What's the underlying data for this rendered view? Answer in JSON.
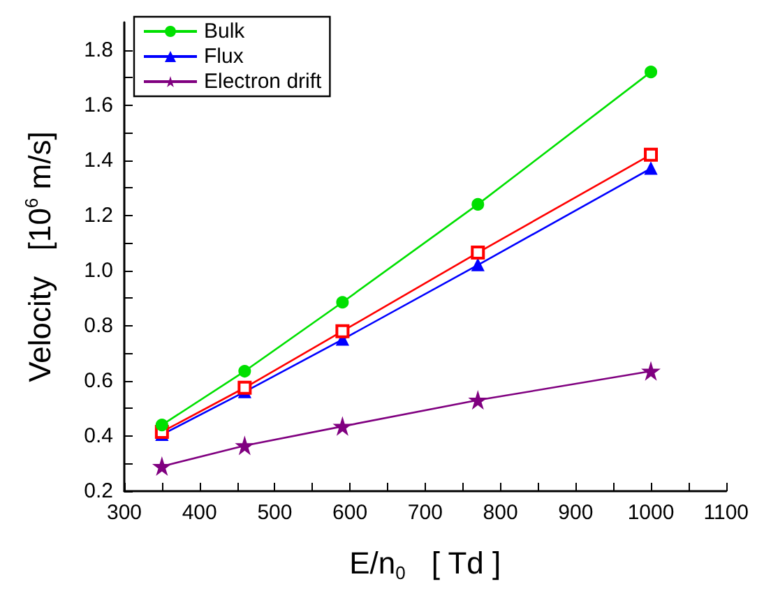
{
  "chart_data": {
    "type": "line",
    "xlabel": "E/n$_{0}$   [ Td ]",
    "ylabel": "Velocity   [10$^{6}$ m/s]",
    "x": [
      350,
      460,
      590,
      770,
      1000
    ],
    "series": [
      {
        "name": "Bulk",
        "color": "#00e000",
        "marker": "circle",
        "values": [
          0.44,
          0.635,
          0.885,
          1.24,
          1.72
        ]
      },
      {
        "color": "#ff0000",
        "marker": "square",
        "values": [
          0.415,
          0.575,
          0.78,
          1.065,
          1.42
        ]
      },
      {
        "name": "Flux",
        "color": "#0000ff",
        "marker": "triangle",
        "values": [
          0.405,
          0.56,
          0.75,
          1.02,
          1.37
        ]
      },
      {
        "name": "Electron drift",
        "color": "#800080",
        "marker": "star",
        "values": [
          0.29,
          0.365,
          0.435,
          0.53,
          0.635
        ]
      }
    ],
    "xlim": [
      300,
      1100
    ],
    "xticks": [
      300,
      400,
      500,
      600,
      700,
      800,
      900,
      1000,
      1100
    ],
    "ylim": [
      0.2,
      1.9
    ],
    "yticks": [
      0.2,
      0.4,
      0.6,
      0.8,
      {
        "value": 1,
        "label": "1.0"
      },
      1.2,
      1.4,
      1.6,
      1.8
    ],
    "grid": false,
    "legend": "top left",
    "line_style": "solid"
  }
}
